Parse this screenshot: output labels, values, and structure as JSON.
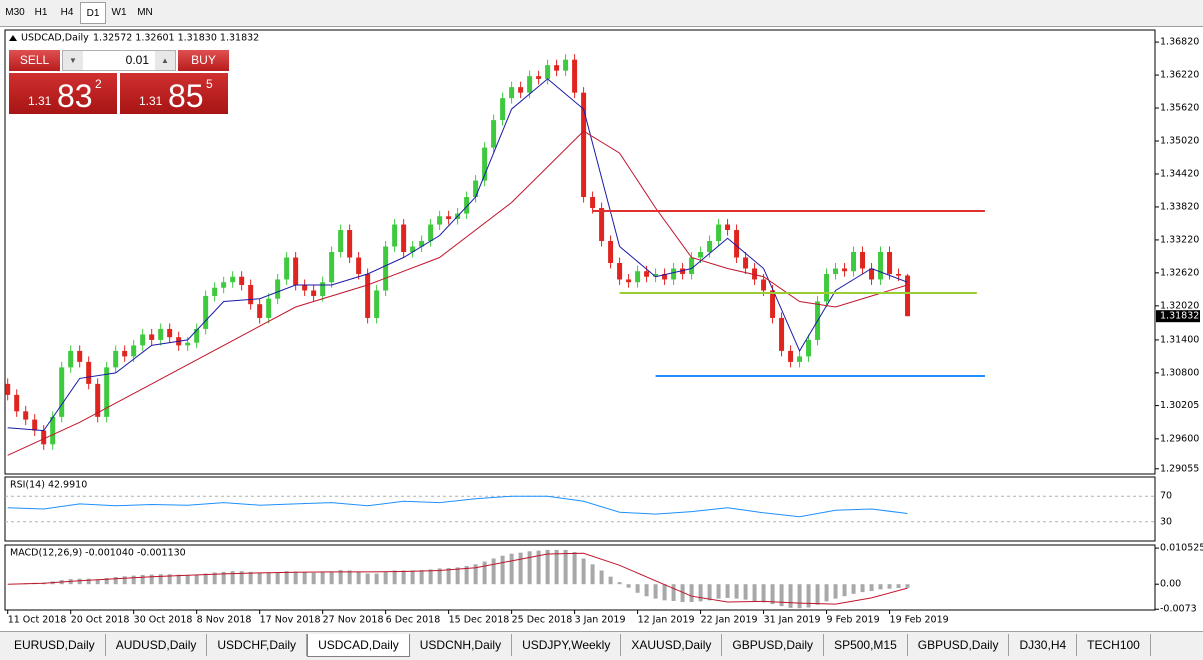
{
  "toolbar": {
    "timeframes": [
      "M30",
      "H1",
      "H4",
      "D1",
      "W1",
      "MN"
    ],
    "active": 3
  },
  "trade_panel": {
    "sell": "SELL",
    "buy": "BUY",
    "lot": "0.01",
    "sell_price": {
      "prefix": "1.31",
      "big": "83",
      "small": "2"
    },
    "buy_price": {
      "prefix": "1.31",
      "big": "85",
      "small": "5"
    }
  },
  "chart_data": [
    {
      "type": "candlestick",
      "title": "USDCAD,Daily",
      "subtitle": "1.32572 1.32601 1.31830 1.31832",
      "up_color": "#3ec93e",
      "down_color": "#e0241f",
      "open": [
        1.306,
        1.304,
        1.301,
        1.2995,
        1.2975,
        1.295,
        1.3,
        1.309,
        1.312,
        1.31,
        1.306,
        1.3,
        1.309,
        1.312,
        1.311,
        1.313,
        1.315,
        1.314,
        1.316,
        1.3145,
        1.313,
        1.3135,
        1.316,
        1.322,
        1.3235,
        1.3245,
        1.3255,
        1.324,
        1.3205,
        1.318,
        1.3215,
        1.325,
        1.329,
        1.324,
        1.323,
        1.322,
        1.3245,
        1.33,
        1.334,
        1.329,
        1.326,
        1.318,
        1.323,
        1.331,
        1.335,
        1.33,
        1.331,
        1.332,
        1.335,
        1.3365,
        1.336,
        1.337,
        1.34,
        1.343,
        1.349,
        1.354,
        1.358,
        1.36,
        1.359,
        1.362,
        1.3615,
        1.364,
        1.363,
        1.365,
        1.359,
        1.34,
        1.338,
        1.332,
        1.328,
        1.325,
        1.3245,
        1.3265,
        1.3255,
        1.326,
        1.325,
        1.327,
        1.326,
        1.329,
        1.33,
        1.332,
        1.335,
        1.334,
        1.329,
        1.327,
        1.325,
        1.323,
        1.318,
        1.312,
        1.31,
        1.311,
        1.314,
        1.321,
        1.326,
        1.327,
        1.3265,
        1.33,
        1.327,
        1.325,
        1.33,
        1.326,
        1.32572
      ],
      "high": [
        1.307,
        1.305,
        1.302,
        1.3005,
        1.2985,
        1.301,
        1.31,
        1.313,
        1.313,
        1.311,
        1.307,
        1.31,
        1.313,
        1.313,
        1.314,
        1.316,
        1.316,
        1.317,
        1.317,
        1.3155,
        1.3145,
        1.317,
        1.323,
        1.3245,
        1.3255,
        1.3265,
        1.3265,
        1.325,
        1.3215,
        1.3225,
        1.326,
        1.33,
        1.33,
        1.325,
        1.324,
        1.3255,
        1.331,
        1.335,
        1.335,
        1.33,
        1.327,
        1.324,
        1.332,
        1.336,
        1.336,
        1.332,
        1.333,
        1.336,
        1.3375,
        1.3375,
        1.338,
        1.341,
        1.344,
        1.35,
        1.355,
        1.359,
        1.361,
        1.361,
        1.363,
        1.363,
        1.365,
        1.365,
        1.366,
        1.366,
        1.36,
        1.341,
        1.339,
        1.333,
        1.329,
        1.326,
        1.3275,
        1.3275,
        1.327,
        1.327,
        1.328,
        1.328,
        1.33,
        1.331,
        1.333,
        1.336,
        1.336,
        1.335,
        1.33,
        1.328,
        1.326,
        1.324,
        1.319,
        1.313,
        1.312,
        1.315,
        1.322,
        1.327,
        1.328,
        1.328,
        1.331,
        1.331,
        1.328,
        1.331,
        1.331,
        1.327,
        1.32601
      ],
      "low": [
        1.303,
        1.3,
        1.2985,
        1.2965,
        1.294,
        1.294,
        1.299,
        1.308,
        1.309,
        1.305,
        1.299,
        1.299,
        1.308,
        1.31,
        1.31,
        1.312,
        1.313,
        1.313,
        1.3135,
        1.312,
        1.312,
        1.3125,
        1.315,
        1.321,
        1.3225,
        1.3235,
        1.323,
        1.3195,
        1.317,
        1.317,
        1.3205,
        1.324,
        1.323,
        1.322,
        1.321,
        1.321,
        1.3235,
        1.329,
        1.328,
        1.325,
        1.317,
        1.317,
        1.322,
        1.33,
        1.329,
        1.329,
        1.33,
        1.331,
        1.334,
        1.335,
        1.335,
        1.336,
        1.339,
        1.342,
        1.348,
        1.353,
        1.357,
        1.358,
        1.358,
        1.3605,
        1.3605,
        1.362,
        1.362,
        1.358,
        1.339,
        1.337,
        1.331,
        1.327,
        1.324,
        1.3235,
        1.3235,
        1.3245,
        1.3245,
        1.324,
        1.324,
        1.325,
        1.325,
        1.328,
        1.329,
        1.331,
        1.333,
        1.328,
        1.326,
        1.324,
        1.322,
        1.317,
        1.311,
        1.309,
        1.309,
        1.31,
        1.313,
        1.32,
        1.325,
        1.3255,
        1.3255,
        1.326,
        1.324,
        1.324,
        1.325,
        1.3247,
        1.3183
      ],
      "close": [
        1.304,
        1.301,
        1.2995,
        1.2975,
        1.295,
        1.3,
        1.309,
        1.312,
        1.31,
        1.306,
        1.3,
        1.309,
        1.312,
        1.311,
        1.313,
        1.315,
        1.314,
        1.316,
        1.3145,
        1.313,
        1.3135,
        1.316,
        1.322,
        1.3235,
        1.3245,
        1.3255,
        1.324,
        1.3205,
        1.318,
        1.3215,
        1.325,
        1.329,
        1.324,
        1.323,
        1.322,
        1.3245,
        1.33,
        1.334,
        1.329,
        1.326,
        1.318,
        1.323,
        1.331,
        1.335,
        1.33,
        1.331,
        1.332,
        1.335,
        1.3365,
        1.336,
        1.337,
        1.34,
        1.343,
        1.349,
        1.354,
        1.358,
        1.36,
        1.359,
        1.362,
        1.3615,
        1.364,
        1.363,
        1.365,
        1.359,
        1.34,
        1.338,
        1.332,
        1.328,
        1.325,
        1.3245,
        1.3265,
        1.3255,
        1.326,
        1.325,
        1.327,
        1.326,
        1.329,
        1.33,
        1.332,
        1.335,
        1.334,
        1.329,
        1.327,
        1.325,
        1.323,
        1.318,
        1.312,
        1.31,
        1.311,
        1.314,
        1.321,
        1.326,
        1.327,
        1.3265,
        1.33,
        1.327,
        1.325,
        1.33,
        1.326,
        1.3257,
        1.31832
      ],
      "series": [
        {
          "color": "#1a1aa8",
          "x": [
            0,
            4,
            8,
            12,
            16,
            20,
            24,
            28,
            32,
            36,
            40,
            44,
            48,
            52,
            56,
            60,
            64,
            68,
            72,
            76,
            80,
            84,
            88,
            92,
            96,
            100
          ],
          "values": [
            1.298,
            1.2975,
            1.307,
            1.308,
            1.313,
            1.314,
            1.321,
            1.3215,
            1.324,
            1.324,
            1.326,
            1.329,
            1.333,
            1.34,
            1.356,
            1.3615,
            1.356,
            1.331,
            1.3255,
            1.327,
            1.3325,
            1.327,
            1.312,
            1.323,
            1.327,
            1.3245
          ]
        },
        {
          "color": "#c0142c",
          "x": [
            0,
            8,
            16,
            24,
            32,
            40,
            48,
            56,
            64,
            68,
            72,
            76,
            80,
            84,
            88,
            92,
            96,
            100
          ],
          "values": [
            1.293,
            1.299,
            1.306,
            1.313,
            1.32,
            1.324,
            1.329,
            1.339,
            1.352,
            1.348,
            1.338,
            1.329,
            1.327,
            1.3255,
            1.321,
            1.32,
            1.322,
            1.324
          ]
        }
      ],
      "levels": [
        {
          "value": 1.33746,
          "x": [
            65,
            108.6
          ],
          "color": "#e03030"
        },
        {
          "value": 1.32254,
          "x": [
            68,
            107.7
          ],
          "color": "#9acd32"
        },
        {
          "value": 1.30744,
          "x": [
            72,
            108.6
          ],
          "color": "#1e90ff"
        }
      ],
      "last_price": 1.31832,
      "xlim": [
        -0.3,
        127.5
      ],
      "ylim": [
        1.2896,
        1.3704
      ],
      "yticks": [
        {
          "value": 1.3682,
          "label": "1.36820"
        },
        {
          "value": 1.3622,
          "label": "1.36220"
        },
        {
          "value": 1.3562,
          "label": "1.35620"
        },
        {
          "value": 1.3502,
          "label": "1.35020"
        },
        {
          "value": 1.3442,
          "label": "1.34420"
        },
        {
          "value": 1.3382,
          "label": "1.33820"
        },
        {
          "value": 1.3322,
          "label": "1.33220"
        },
        {
          "value": 1.3262,
          "label": "1.32620"
        },
        {
          "value": 1.3202,
          "label": "1.32020"
        },
        {
          "value": 1.314,
          "label": "1.31400"
        },
        {
          "value": 1.308,
          "label": "1.30800"
        },
        1.30205,
        {
          "value": 1.296,
          "label": "1.29600"
        },
        1.29055
      ],
      "xticks": [
        {
          "value": 0,
          "label": "11 Oct 2018"
        },
        {
          "value": 7,
          "label": "20 Oct 2018"
        },
        {
          "value": 14,
          "label": "30 Oct 2018"
        },
        {
          "value": 21,
          "label": "8 Nov 2018"
        },
        {
          "value": 28,
          "label": "17 Nov 2018"
        },
        {
          "value": 35,
          "label": "27 Nov 2018"
        },
        {
          "value": 42,
          "label": "6 Dec 2018"
        },
        {
          "value": 49,
          "label": "15 Dec 2018"
        },
        {
          "value": 56,
          "label": "25 Dec 2018"
        },
        {
          "value": 63,
          "label": "3 Jan 2019"
        },
        {
          "value": 70,
          "label": "12 Jan 2019"
        },
        {
          "value": 77,
          "label": "22 Jan 2019"
        },
        {
          "value": 84,
          "label": "31 Jan 2019"
        },
        {
          "value": 91,
          "label": "9 Feb 2019"
        },
        {
          "value": 98,
          "label": "19 Feb 2019"
        }
      ]
    },
    {
      "type": "line",
      "title": "RSI(14) 42.9910",
      "color": "#1e90ff",
      "x": [
        0,
        4,
        8,
        12,
        16,
        20,
        24,
        28,
        32,
        36,
        40,
        44,
        48,
        52,
        56,
        60,
        64,
        68,
        72,
        76,
        80,
        84,
        88,
        92,
        96,
        100
      ],
      "values": [
        52,
        50,
        58,
        55,
        57,
        56,
        60,
        56,
        58,
        60,
        55,
        62,
        60,
        66,
        70,
        70,
        62,
        45,
        42,
        46,
        52,
        44,
        38,
        48,
        50,
        42.991
      ],
      "ylim": [
        0,
        100
      ],
      "yticks": [
        70,
        30
      ]
    },
    {
      "type": "macd",
      "title": "MACD(12,26,9) -0.001040 -0.001130",
      "bar_color": "#a8a8a8",
      "values": [
        0.0,
        0.0002,
        0.0003,
        0.0004,
        0.0005,
        0.0008,
        0.0012,
        0.0015,
        0.0016,
        0.0016,
        0.0014,
        0.0018,
        0.0021,
        0.0023,
        0.0025,
        0.0027,
        0.0028,
        0.0029,
        0.0029,
        0.0028,
        0.0027,
        0.0028,
        0.0031,
        0.0034,
        0.0036,
        0.0038,
        0.0038,
        0.0036,
        0.0033,
        0.0033,
        0.0035,
        0.0038,
        0.0037,
        0.0035,
        0.0033,
        0.0034,
        0.0037,
        0.0041,
        0.004,
        0.0037,
        0.0031,
        0.0031,
        0.0035,
        0.004,
        0.004,
        0.004,
        0.0041,
        0.0043,
        0.0046,
        0.0047,
        0.0049,
        0.0053,
        0.0058,
        0.0066,
        0.0075,
        0.0083,
        0.0089,
        0.0092,
        0.0096,
        0.0098,
        0.01,
        0.01,
        0.01,
        0.0094,
        0.0075,
        0.0058,
        0.004,
        0.0022,
        0.0006,
        -0.001,
        -0.0025,
        -0.0035,
        -0.0042,
        -0.0047,
        -0.0049,
        -0.0052,
        -0.0052,
        -0.005,
        -0.0047,
        -0.0042,
        -0.004,
        -0.0042,
        -0.0045,
        -0.0049,
        -0.0053,
        -0.0058,
        -0.0064,
        -0.0069,
        -0.007,
        -0.0068,
        -0.006,
        -0.005,
        -0.0042,
        -0.0035,
        -0.0028,
        -0.0023,
        -0.002,
        -0.0015,
        -0.0013,
        -0.0011,
        -0.00104
      ],
      "signal": {
        "color": "#c0142c",
        "x": [
          0,
          4,
          8,
          12,
          16,
          20,
          24,
          28,
          32,
          36,
          40,
          44,
          48,
          52,
          56,
          60,
          64,
          68,
          72,
          76,
          80,
          84,
          88,
          92,
          96,
          100
        ],
        "values": [
          0.0,
          0.0003,
          0.001,
          0.0016,
          0.0022,
          0.0026,
          0.003,
          0.0033,
          0.0035,
          0.0036,
          0.0036,
          0.0037,
          0.004,
          0.0048,
          0.0068,
          0.0088,
          0.009,
          0.0055,
          0.001,
          -0.0035,
          -0.0052,
          -0.005,
          -0.0055,
          -0.0058,
          -0.004,
          -0.00113
        ]
      },
      "ylim": [
        -0.00752,
        0.01143
      ],
      "yticks": [
        0.010525,
        {
          "value": 0,
          "label": "0.00"
        },
        -0.0073
      ]
    }
  ],
  "tabs": {
    "items": [
      "EURUSD,Daily",
      "AUDUSD,Daily",
      "USDCHF,Daily",
      "USDCAD,Daily",
      "USDCNH,Daily",
      "USDJPY,Weekly",
      "XAUUSD,Daily",
      "GBPUSD,Daily",
      "SP500,M15",
      "GBPUSD,Daily",
      "DJ30,H4",
      "TECH100"
    ],
    "active": 3
  }
}
